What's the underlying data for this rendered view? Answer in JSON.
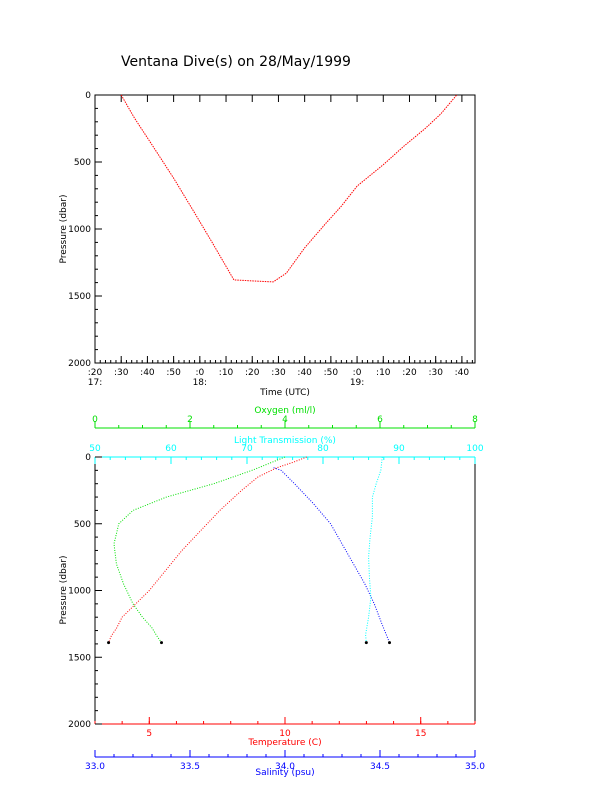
{
  "title": "Ventana Dive(s) on 28/May/1999",
  "colors": {
    "background": "#ffffff",
    "axis": "#000000",
    "pressure_trace": "#ff0000",
    "temperature": "#ff0000",
    "salinity": "#0000ff",
    "oxygen": "#00e000",
    "light_transmission": "#00ffff"
  },
  "chart_data": [
    {
      "type": "line",
      "title": "Ventana Dive(s) on 28/May/1999",
      "xlabel": "Time (UTC)",
      "ylabel": "Pressure (dbar)",
      "x_tick_labels": [
        ":20",
        ":30",
        ":40",
        ":50",
        ":0",
        ":10",
        ":20",
        ":30",
        ":40",
        ":50",
        ":0",
        ":10",
        ":20",
        ":30",
        ":40"
      ],
      "x_tick_values_min": [
        1040,
        1050,
        1060,
        1070,
        1080,
        1090,
        1100,
        1110,
        1120,
        1130,
        1140,
        1150,
        1160,
        1170,
        1180
      ],
      "hour_labels": [
        {
          "label": "17:",
          "value_min": 1040
        },
        {
          "label": "18:",
          "value_min": 1080
        },
        {
          "label": "19:",
          "value_min": 1140
        }
      ],
      "xlim_min": [
        1040,
        1185
      ],
      "ylim": [
        2000,
        0
      ],
      "y_ticks": [
        0,
        500,
        1000,
        1500,
        2000
      ],
      "y_tick_labels": [
        "0",
        "500",
        "1000",
        "1500",
        "2000"
      ],
      "series": [
        {
          "x_min": [
            1050,
            1055,
            1062,
            1070,
            1078,
            1085,
            1093,
            1103,
            1108,
            1113,
            1120,
            1128,
            1134,
            1140,
            1150,
            1158,
            1166,
            1172,
            1178
          ],
          "y": [
            0,
            170,
            380,
            620,
            880,
            1110,
            1380,
            1390,
            1395,
            1330,
            1140,
            960,
            830,
            680,
            520,
            380,
            250,
            140,
            0
          ]
        }
      ]
    },
    {
      "type": "line",
      "ylabel": "Pressure (dbar)",
      "ylim": [
        2000,
        0
      ],
      "y_ticks": [
        0,
        500,
        1000,
        1500,
        2000
      ],
      "y_tick_labels": [
        "0",
        "500",
        "1000",
        "1500",
        "2000"
      ],
      "axes": {
        "oxygen": {
          "label": "Oxygen (ml/l)",
          "range": [
            0,
            8
          ],
          "ticks": [
            0,
            2,
            4,
            6,
            8
          ],
          "tick_labels": [
            "0",
            "2",
            "4",
            "6",
            "8"
          ]
        },
        "light_transmission": {
          "label": "Light Transmission (%)",
          "range": [
            50,
            100
          ],
          "ticks": [
            50,
            60,
            70,
            80,
            90,
            100
          ],
          "tick_labels": [
            "50",
            "60",
            "70",
            "80",
            "90",
            "100"
          ]
        },
        "temperature": {
          "label": "Temperature (C)",
          "range": [
            3,
            17
          ],
          "ticks": [
            5,
            10,
            15
          ],
          "tick_labels": [
            "5",
            "10",
            "15"
          ]
        },
        "salinity": {
          "label": "Salinity (psu)",
          "range": [
            33.0,
            35.0
          ],
          "ticks": [
            33.0,
            33.5,
            34.0,
            34.5,
            35.0
          ],
          "tick_labels": [
            "33.0",
            "33.5",
            "34.0",
            "34.5",
            "35.0"
          ]
        }
      },
      "series": [
        {
          "axis": "temperature",
          "x": [
            10.8,
            10.3,
            9.7,
            9.0,
            8.4,
            7.6,
            6.9,
            6.2,
            5.6,
            5.0,
            4.5,
            4.0,
            3.8,
            3.6,
            3.5
          ],
          "y": [
            0,
            40,
            80,
            150,
            250,
            400,
            550,
            700,
            850,
            1000,
            1100,
            1200,
            1280,
            1340,
            1390
          ]
        },
        {
          "axis": "salinity",
          "x": [
            33.94,
            33.98,
            34.05,
            34.15,
            34.24,
            34.3,
            34.36,
            34.42,
            34.47,
            34.51,
            34.55
          ],
          "y": [
            80,
            100,
            200,
            350,
            500,
            650,
            800,
            950,
            1100,
            1250,
            1390
          ]
        },
        {
          "axis": "oxygen",
          "x": [
            4.0,
            3.3,
            2.5,
            1.5,
            0.8,
            0.5,
            0.4,
            0.45,
            0.6,
            0.8,
            1.0,
            1.2,
            1.3,
            1.4
          ],
          "y": [
            0,
            100,
            200,
            300,
            400,
            500,
            650,
            800,
            950,
            1100,
            1200,
            1280,
            1340,
            1390
          ]
        },
        {
          "axis": "light_transmission",
          "x": [
            87.8,
            87.6,
            87.0,
            86.5,
            86.5,
            86.2,
            86.0,
            86.1,
            86.3,
            86.0,
            85.6,
            85.7
          ],
          "y": [
            0,
            100,
            200,
            300,
            450,
            600,
            750,
            900,
            1050,
            1200,
            1330,
            1390
          ]
        }
      ]
    }
  ]
}
